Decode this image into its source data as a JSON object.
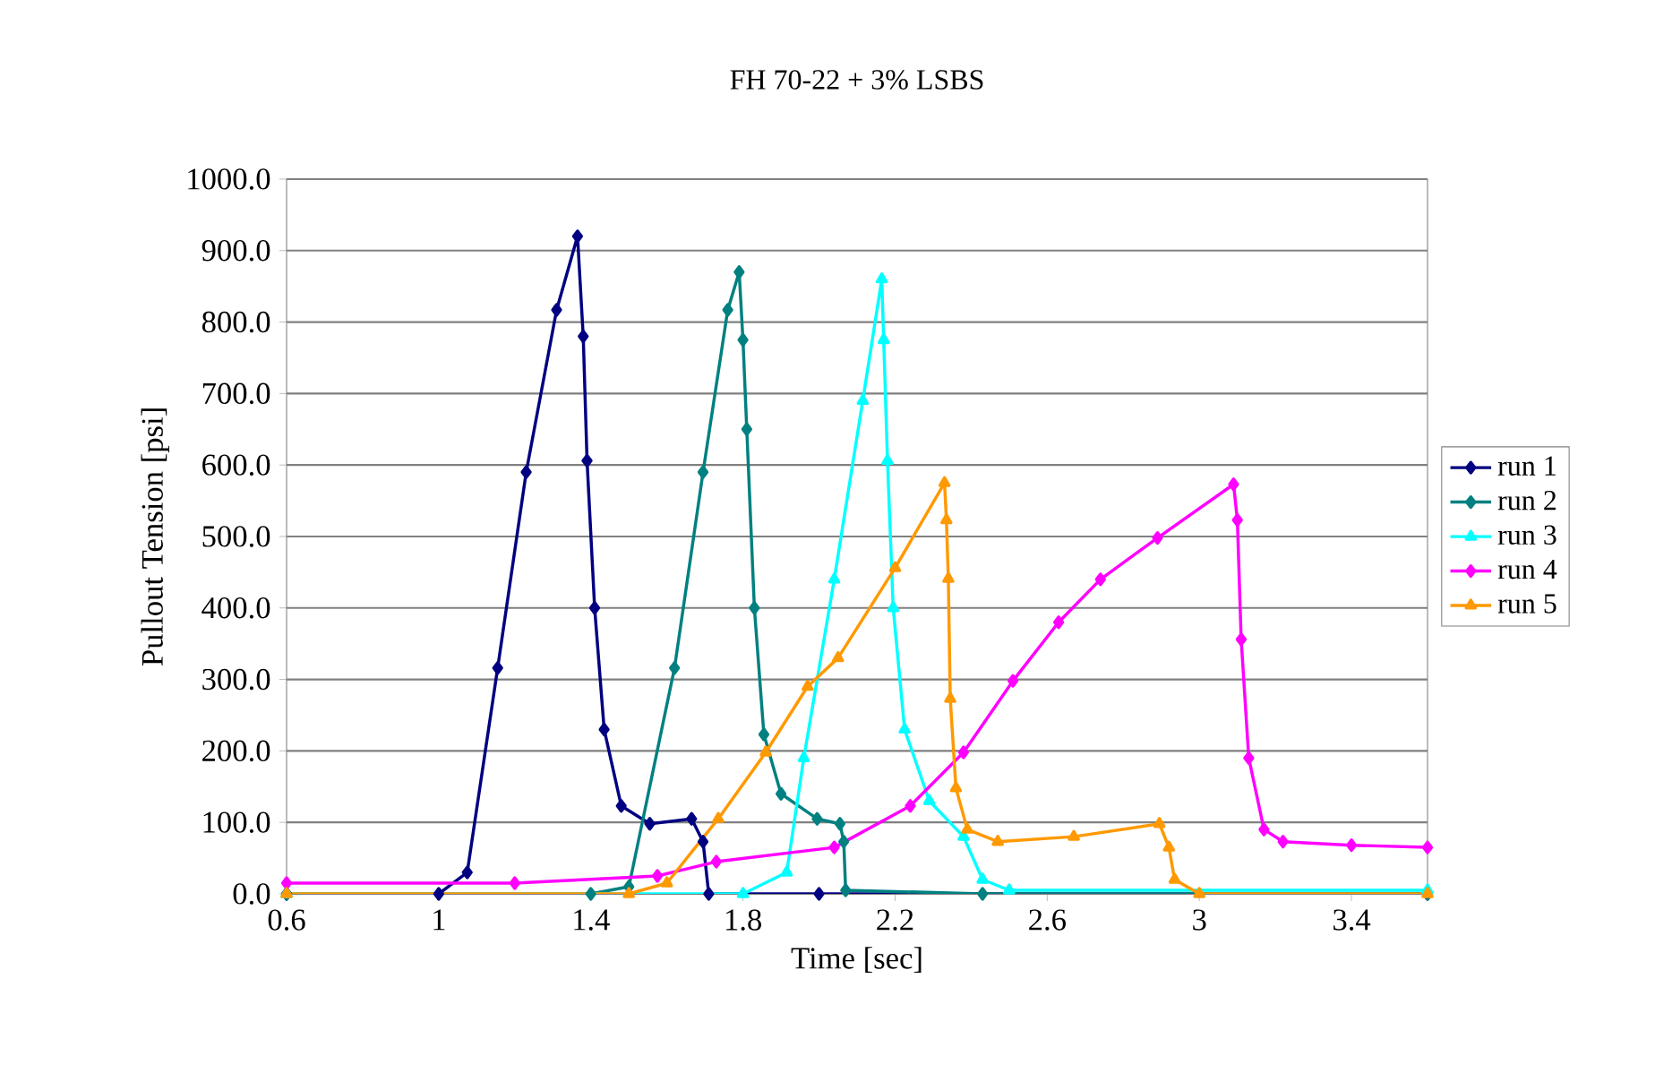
{
  "chart_data": {
    "type": "line",
    "title": "FH 70-22 + 3% LSBS",
    "xlabel": "Time [sec]",
    "ylabel": "Pullout Tension [psi]",
    "xlim": [
      0.6,
      3.6
    ],
    "xticks": [
      0.6,
      1,
      1.4,
      1.8,
      2.2,
      2.6,
      3,
      3.4
    ],
    "ylim": [
      0,
      1000
    ],
    "yticks": [
      {
        "value": 0,
        "label": "0.0"
      },
      {
        "value": 100,
        "label": "100.0"
      },
      {
        "value": 200,
        "label": "200.0"
      },
      {
        "value": 300,
        "label": "300.0"
      },
      {
        "value": 400,
        "label": "400.0"
      },
      {
        "value": 500,
        "label": "500.0"
      },
      {
        "value": 600,
        "label": "600.0"
      },
      {
        "value": 700,
        "label": "700.0"
      },
      {
        "value": 800,
        "label": "800.0"
      },
      {
        "value": 900,
        "label": "900.0"
      },
      {
        "value": 1000,
        "label": "1000.0"
      }
    ],
    "grid": "y",
    "legend": "right",
    "line_style": "solid",
    "series": [
      {
        "name": "run 1",
        "color": "#000080",
        "marker": "diamond",
        "x": [
          0.6,
          1.0,
          1.075,
          1.155,
          1.23,
          1.31,
          1.365,
          1.38,
          1.39,
          1.41,
          1.435,
          1.48,
          1.555,
          1.665,
          1.695,
          1.71,
          2.0,
          3.6
        ],
        "values": [
          0,
          0,
          30,
          316,
          590,
          817,
          920,
          780,
          606,
          400,
          230,
          123,
          98,
          105,
          73,
          0,
          0,
          0
        ]
      },
      {
        "name": "run 2",
        "color": "#008080",
        "marker": "diamond",
        "x": [
          0.6,
          1.4,
          1.5,
          1.62,
          1.695,
          1.76,
          1.79,
          1.8,
          1.81,
          1.83,
          1.855,
          1.9,
          1.995,
          2.055,
          2.065,
          2.07,
          2.43,
          3.6
        ],
        "values": [
          0,
          0,
          10,
          316,
          590,
          817,
          870,
          775,
          650,
          400,
          223,
          140,
          105,
          98,
          73,
          5,
          0,
          0
        ]
      },
      {
        "name": "run 3",
        "color": "#00ffff",
        "marker": "triangle",
        "x": [
          0.6,
          1.8,
          1.915,
          1.96,
          2.04,
          2.115,
          2.165,
          2.17,
          2.18,
          2.195,
          2.225,
          2.29,
          2.38,
          2.43,
          2.5,
          3.6
        ],
        "values": [
          0,
          0,
          30,
          190,
          440,
          690,
          860,
          775,
          606,
          400,
          230,
          130,
          80,
          20,
          5,
          5
        ]
      },
      {
        "name": "run 4",
        "color": "#ff00ff",
        "marker": "diamond",
        "x": [
          0.6,
          1.2,
          1.575,
          1.73,
          2.04,
          2.24,
          2.38,
          2.51,
          2.63,
          2.74,
          2.89,
          3.09,
          3.1,
          3.11,
          3.13,
          3.17,
          3.22,
          3.4,
          3.6
        ],
        "values": [
          15,
          15,
          25,
          45,
          65,
          123,
          198,
          298,
          380,
          440,
          498,
          573,
          523,
          356,
          190,
          90,
          73,
          68,
          65
        ]
      },
      {
        "name": "run 5",
        "color": "#ff9900",
        "marker": "triangle",
        "x": [
          0.6,
          1.5,
          1.6,
          1.735,
          1.86,
          1.97,
          2.05,
          2.2,
          2.33,
          2.335,
          2.34,
          2.345,
          2.36,
          2.39,
          2.47,
          2.67,
          2.895,
          2.92,
          2.935,
          3.0,
          3.6
        ],
        "values": [
          0,
          0,
          15,
          105,
          198,
          290,
          330,
          456,
          575,
          523,
          441,
          273,
          148,
          90,
          73,
          80,
          98,
          65,
          20,
          0,
          0
        ]
      }
    ]
  }
}
